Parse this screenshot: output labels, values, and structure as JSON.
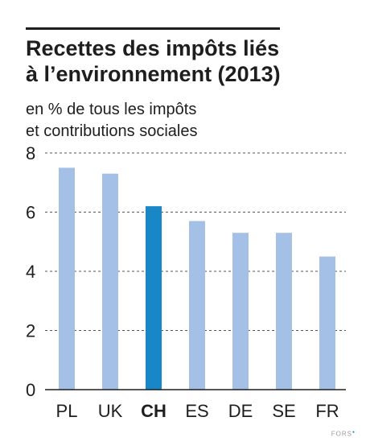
{
  "colors": {
    "bar": "#a5c0e6",
    "highlight": "#1787c8",
    "text": "#1e1e1e",
    "grid": "#555555"
  },
  "chart_data": {
    "type": "bar",
    "title_lines": [
      "Recettes des impôts liés",
      "à l’environnement (2013)"
    ],
    "subtitle_lines": [
      "en % de tous les impôts",
      "et contributions sociales"
    ],
    "categories": [
      "PL",
      "UK",
      "CH",
      "ES",
      "DE",
      "SE",
      "FR"
    ],
    "values": [
      7.5,
      7.3,
      6.2,
      5.7,
      5.3,
      5.3,
      4.5
    ],
    "highlight_category": "CH",
    "ylim": [
      0,
      8
    ],
    "yticks": [
      "0",
      "2",
      "4",
      "6",
      "8"
    ],
    "grid": "dashed-horizontal",
    "legend": "none"
  },
  "credit": {
    "text": "FORS",
    "mark": "●"
  }
}
